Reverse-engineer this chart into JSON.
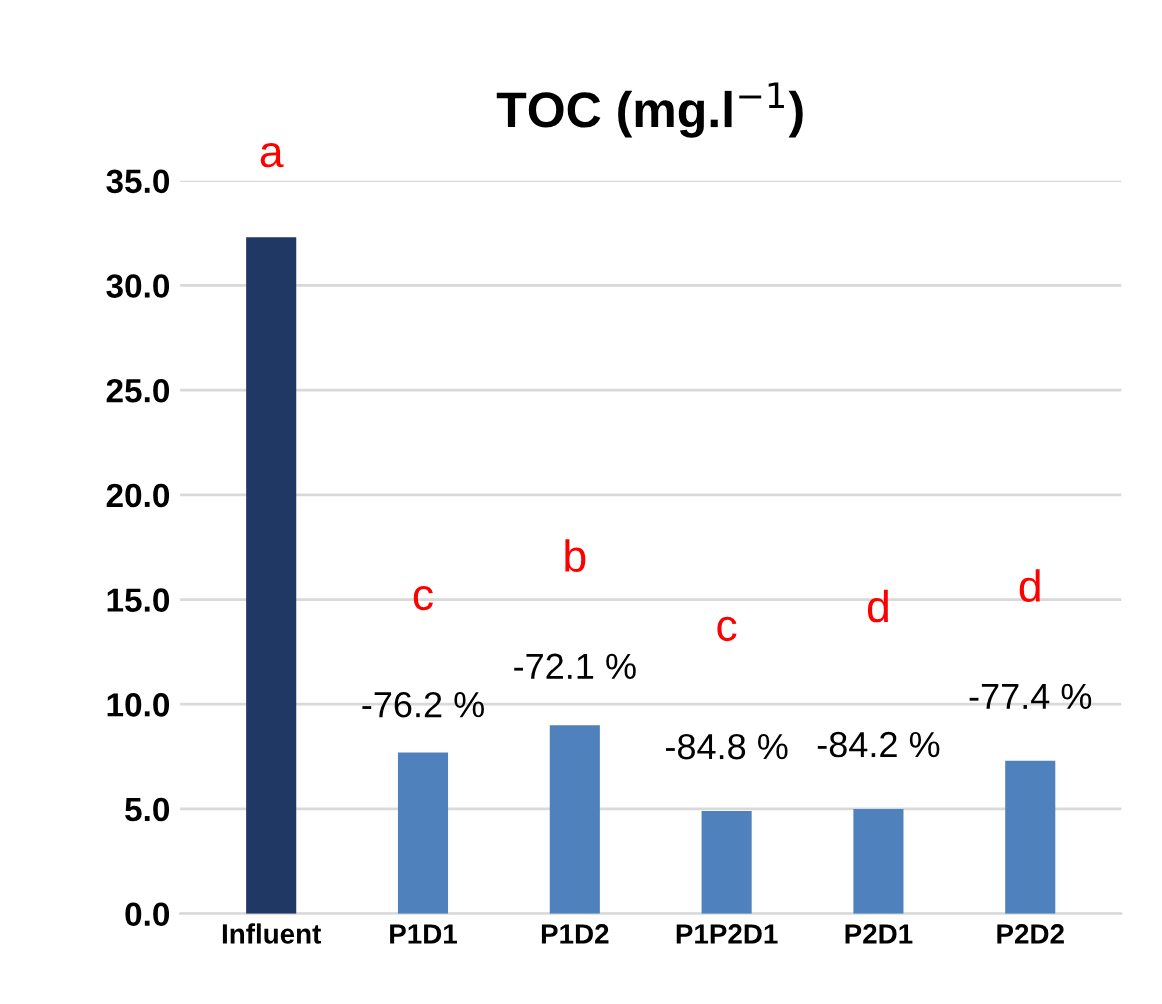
{
  "chart_data": {
    "type": "bar",
    "title": "TOC (mg.l$^{−1}$)",
    "categories": [
      "Influent",
      "P1D1",
      "P1D2",
      "P1P2D1",
      "P2D1",
      "P2D2"
    ],
    "values": [
      32.3,
      7.7,
      9.0,
      4.9,
      5.0,
      7.3
    ],
    "colors": [
      "#1f3864",
      "#4f81bd",
      "#4f81bd",
      "#4f81bd",
      "#4f81bd",
      "#4f81bd"
    ],
    "annotations": [
      "a",
      "c",
      "-76.2 %",
      "b",
      "-72.1 %",
      "c",
      "-84.8 %",
      "d",
      "-84.2 %",
      "d",
      "-77.4 %"
    ],
    "ylim": [
      0,
      35
    ],
    "yticks": [
      {
        "value": 0,
        "label": "0.0"
      },
      {
        "value": 5,
        "label": "5.0"
      },
      {
        "value": 10,
        "label": "10.0"
      },
      {
        "value": 15,
        "label": "15.0"
      },
      {
        "value": 20,
        "label": "20.0"
      },
      {
        "value": 25,
        "label": "25.0"
      },
      {
        "value": 30,
        "label": "30.0"
      },
      {
        "value": 35,
        "label": "35.0"
      }
    ],
    "grid": "y",
    "legend": false
  }
}
